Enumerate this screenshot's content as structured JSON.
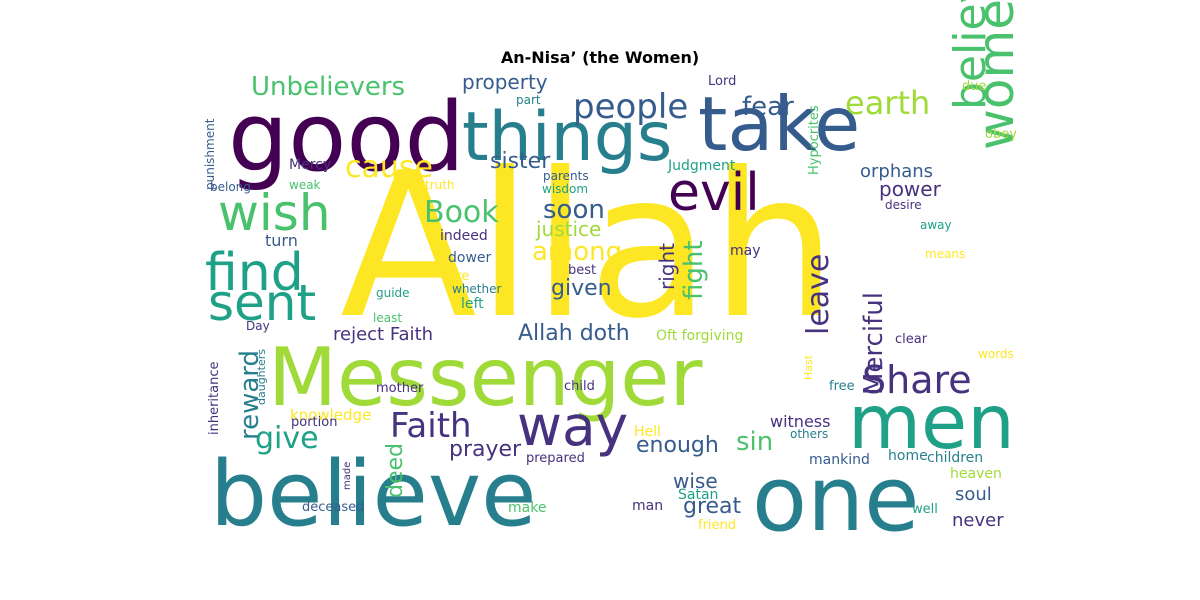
{
  "title": "An-Nisa’ (the Women)",
  "palette": [
    "#440154",
    "#46327e",
    "#365c8d",
    "#277f8e",
    "#1fa187",
    "#4ac16d",
    "#a0da39",
    "#fde725"
  ],
  "words": [
    {
      "text": "Allah",
      "color": "#fde725"
    },
    {
      "text": "Messenger",
      "color": "#a0da39"
    },
    {
      "text": "believe",
      "color": "#277f8e"
    },
    {
      "text": "one",
      "color": "#277f8e"
    },
    {
      "text": "good",
      "color": "#440154"
    },
    {
      "text": "take",
      "color": "#365c8d"
    },
    {
      "text": "things",
      "color": "#277f8e"
    },
    {
      "text": "men",
      "color": "#1fa187"
    },
    {
      "text": "way",
      "color": "#46327e"
    },
    {
      "text": "believer",
      "color": "#4ac16d"
    },
    {
      "text": "women",
      "color": "#4ac16d"
    },
    {
      "text": "evil",
      "color": "#440154"
    },
    {
      "text": "find",
      "color": "#1fa187"
    },
    {
      "text": "wish",
      "color": "#4ac16d"
    },
    {
      "text": "sent",
      "color": "#1fa187"
    },
    {
      "text": "Share",
      "color": "#46327e"
    },
    {
      "text": "people",
      "color": "#365c8d"
    },
    {
      "text": "earth",
      "color": "#a0da39"
    },
    {
      "text": "Faith",
      "color": "#46327e"
    },
    {
      "text": "Book",
      "color": "#4ac16d"
    },
    {
      "text": "Unbelievers",
      "color": "#4ac16d"
    },
    {
      "text": "cause",
      "color": "#fde725"
    },
    {
      "text": "leave",
      "color": "#46327e"
    },
    {
      "text": "give",
      "color": "#1fa187"
    },
    {
      "text": "reward",
      "color": "#277f8e"
    },
    {
      "text": "Merciful",
      "color": "#46327e"
    },
    {
      "text": "fear",
      "color": "#365c8d"
    },
    {
      "text": "soon",
      "color": "#365c8d"
    },
    {
      "text": "among",
      "color": "#fde725"
    },
    {
      "text": "given",
      "color": "#365c8d"
    },
    {
      "text": "sister",
      "color": "#365c8d"
    },
    {
      "text": "justice",
      "color": "#a0da39"
    },
    {
      "text": "fight",
      "color": "#4ac16d"
    },
    {
      "text": "sin",
      "color": "#4ac16d"
    },
    {
      "text": "enough",
      "color": "#365c8d"
    },
    {
      "text": "prayer",
      "color": "#46327e"
    },
    {
      "text": "Allah doth",
      "color": "#365c8d"
    },
    {
      "text": "great",
      "color": "#365c8d"
    },
    {
      "text": "deed",
      "color": "#4ac16d"
    },
    {
      "text": "right",
      "color": "#46327e"
    },
    {
      "text": "wise",
      "color": "#365c8d"
    },
    {
      "text": "property",
      "color": "#365c8d"
    },
    {
      "text": "power",
      "color": "#46327e"
    },
    {
      "text": "orphans",
      "color": "#365c8d"
    },
    {
      "text": "soul",
      "color": "#365c8d"
    },
    {
      "text": "never",
      "color": "#46327e"
    },
    {
      "text": "reject Faith",
      "color": "#46327e"
    },
    {
      "text": "witness",
      "color": "#46327e"
    },
    {
      "text": "Judgment",
      "color": "#1fa187"
    },
    {
      "text": "Oft forgiving",
      "color": "#a0da39"
    },
    {
      "text": "heaven",
      "color": "#a0da39"
    },
    {
      "text": "children",
      "color": "#277f8e"
    },
    {
      "text": "mankind",
      "color": "#365c8d"
    },
    {
      "text": "home",
      "color": "#277f8e"
    },
    {
      "text": "turn",
      "color": "#365c8d"
    },
    {
      "text": "knowledge",
      "color": "#fde725"
    },
    {
      "text": "Satan",
      "color": "#1fa187"
    },
    {
      "text": "make",
      "color": "#4ac16d"
    },
    {
      "text": "man",
      "color": "#46327e"
    },
    {
      "text": "indeed",
      "color": "#46327e"
    },
    {
      "text": "dower",
      "color": "#365c8d"
    },
    {
      "text": "may",
      "color": "#46327e"
    },
    {
      "text": "best",
      "color": "#46327e"
    },
    {
      "text": "left",
      "color": "#1fa187"
    },
    {
      "text": "whether",
      "color": "#277f8e"
    },
    {
      "text": "guide",
      "color": "#1fa187"
    },
    {
      "text": "least",
      "color": "#4ac16d"
    },
    {
      "text": "Fire",
      "color": "#fde725"
    },
    {
      "text": "clear",
      "color": "#46327e"
    },
    {
      "text": "Hell",
      "color": "#fde725"
    },
    {
      "text": "free",
      "color": "#277f8e"
    },
    {
      "text": "others",
      "color": "#277f8e"
    },
    {
      "text": "well",
      "color": "#1fa187"
    },
    {
      "text": "friend",
      "color": "#fde725"
    },
    {
      "text": "prepared",
      "color": "#46327e"
    },
    {
      "text": "mother",
      "color": "#46327e"
    },
    {
      "text": "child",
      "color": "#46327e"
    },
    {
      "text": "deceased",
      "color": "#365c8d"
    },
    {
      "text": "portion",
      "color": "#46327e"
    },
    {
      "text": "Day",
      "color": "#46327e"
    },
    {
      "text": "Mercy",
      "color": "#46327e"
    },
    {
      "text": "belong",
      "color": "#365c8d"
    },
    {
      "text": "weak",
      "color": "#4ac16d"
    },
    {
      "text": "truth",
      "color": "#fde725"
    },
    {
      "text": "parents",
      "color": "#365c8d"
    },
    {
      "text": "wisdom",
      "color": "#1fa187"
    },
    {
      "text": "part",
      "color": "#277f8e"
    },
    {
      "text": "Lord",
      "color": "#46327e"
    },
    {
      "text": "due",
      "color": "#a0da39"
    },
    {
      "text": "obey",
      "color": "#a0da39"
    },
    {
      "text": "desire",
      "color": "#46327e"
    },
    {
      "text": "away",
      "color": "#1fa187"
    },
    {
      "text": "means",
      "color": "#fde725"
    },
    {
      "text": "words",
      "color": "#fde725"
    },
    {
      "text": "punishment",
      "color": "#365c8d"
    },
    {
      "text": "inheritance",
      "color": "#46327e"
    },
    {
      "text": "daughters",
      "color": "#277f8e"
    },
    {
      "text": "made",
      "color": "#46327e"
    },
    {
      "text": "Hypocrites",
      "color": "#4ac16d"
    },
    {
      "text": "Hast",
      "color": "#fde725"
    }
  ]
}
